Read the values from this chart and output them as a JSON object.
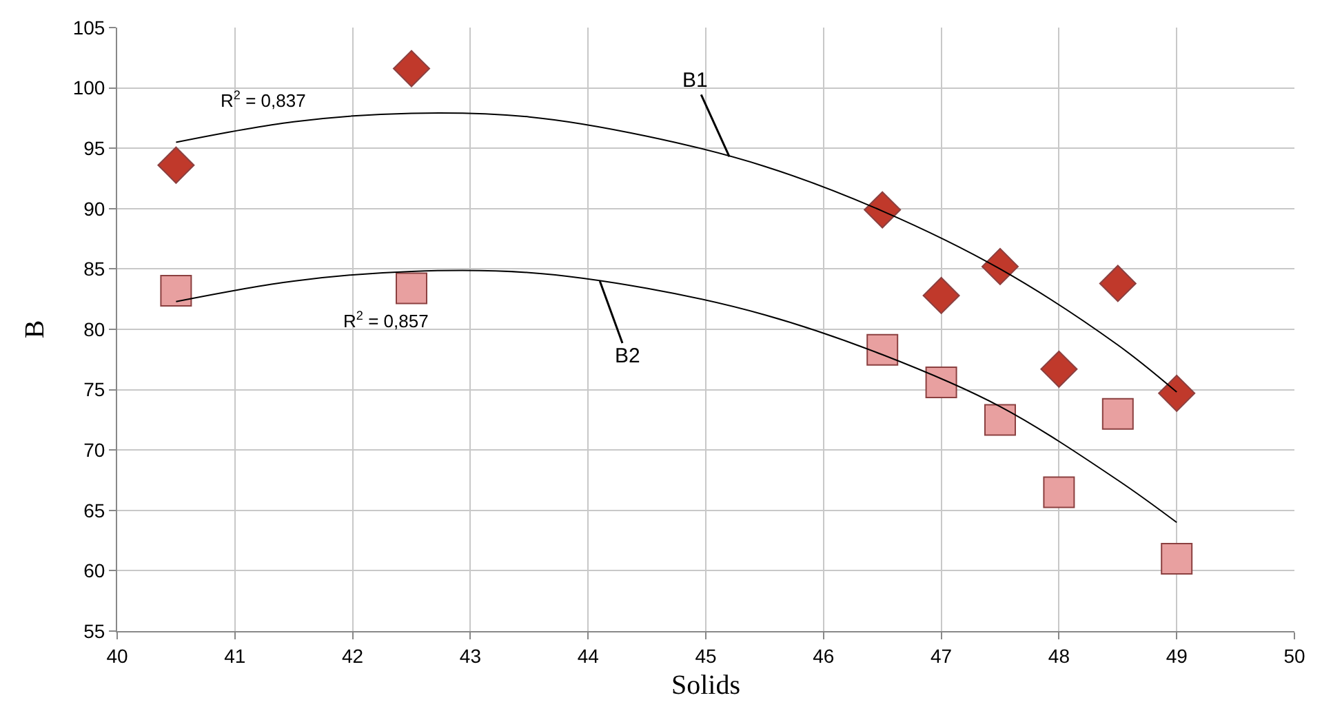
{
  "chart_data": {
    "type": "scatter",
    "xlabel": "Solids",
    "ylabel": "B",
    "xlim": [
      40,
      50
    ],
    "xticks": [
      40,
      41,
      42,
      43,
      44,
      45,
      46,
      47,
      48,
      49,
      50
    ],
    "ylim": [
      55,
      105
    ],
    "yticks": [
      55,
      60,
      65,
      70,
      75,
      80,
      85,
      90,
      95,
      100,
      105
    ],
    "grid": true,
    "legend": false,
    "series": [
      {
        "marker": "diamond",
        "color": "#c0392b",
        "x": [
          40.5,
          42.5,
          46.5,
          47,
          47.5,
          48,
          48.5,
          49
        ],
        "values": [
          93.6,
          101.6,
          89.9,
          82.8,
          85.2,
          76.7,
          83.8,
          74.7
        ]
      },
      {
        "marker": "square",
        "color": "#e8a0a0",
        "x": [
          40.5,
          42.5,
          46.5,
          47,
          47.5,
          48,
          48.5,
          49
        ],
        "values": [
          83.2,
          83.4,
          78.3,
          75.6,
          72.5,
          66.5,
          73.0,
          61.0
        ]
      },
      {
        "type": "line",
        "marker": "none",
        "color": "#000000",
        "x": [
          40.5,
          41.5,
          42.5,
          43.5,
          44.5,
          45.5,
          46.5,
          47.5,
          48.5,
          49
        ],
        "values": [
          95.5,
          97.2,
          97.9,
          97.6,
          96.0,
          93.5,
          89.8,
          85.0,
          78.7,
          74.8
        ]
      },
      {
        "type": "line",
        "marker": "none",
        "color": "#000000",
        "x": [
          40.5,
          41.5,
          42.5,
          43.5,
          44.5,
          45.5,
          46.5,
          47.5,
          48.5,
          49
        ],
        "values": [
          82.3,
          84.0,
          84.8,
          84.7,
          83.4,
          81.2,
          77.9,
          73.6,
          67.5,
          64.0
        ]
      }
    ],
    "annotations": [
      "R$^{2}$ = 0,837",
      "R$^{2}$ = 0,857",
      {
        "text": "B1",
        "x": 45.2,
        "y": 94.3
      },
      {
        "text": "B2",
        "x": 44.1,
        "y": 84.0
      }
    ]
  }
}
